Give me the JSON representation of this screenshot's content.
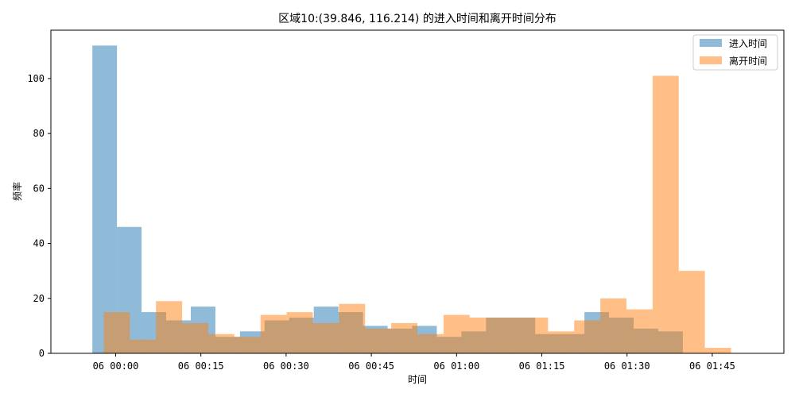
{
  "chart_data": {
    "type": "bar",
    "title": "区域10:(39.846, 116.214) 的进入时间和离开时间分布",
    "xlabel": "时间",
    "ylabel": "频率",
    "x_unit": "minutes after 06 00:00",
    "x_tick_values": [
      0,
      15,
      30,
      45,
      60,
      75,
      90,
      105
    ],
    "x_tick_labels": [
      "06 00:00",
      "06 00:15",
      "06 00:30",
      "06 00:45",
      "06 01:00",
      "06 01:15",
      "06 01:30",
      "06 01:45"
    ],
    "xlim": [
      -11.4,
      117.6
    ],
    "ylim": [
      0,
      117.6
    ],
    "y_tick_values": [
      0,
      20,
      40,
      60,
      80,
      100
    ],
    "grid": false,
    "legend_position": "top-right",
    "series": [
      {
        "name": "进入时间",
        "color": "#1f77b4",
        "opacity": 0.5,
        "bin_edges": [
          -4.1,
          0.23,
          4.56,
          8.89,
          13.22,
          17.55,
          21.88,
          26.21,
          30.54,
          34.87,
          39.2,
          43.53,
          47.86,
          52.19,
          56.52,
          60.85,
          65.18,
          69.51,
          73.84,
          78.17,
          82.5,
          86.83,
          91.16,
          95.49,
          99.82
        ],
        "values": [
          112,
          46,
          15,
          12,
          17,
          6,
          8,
          12,
          13,
          17,
          15,
          10,
          9,
          10,
          6,
          8,
          13,
          13,
          7,
          7,
          15,
          13,
          9,
          8
        ]
      },
      {
        "name": "离开时间",
        "color": "#ff7f0e",
        "opacity": 0.5,
        "bin_edges": [
          -2.1,
          2.5,
          7.1,
          11.7,
          16.3,
          20.9,
          25.5,
          30.1,
          34.7,
          39.3,
          43.9,
          48.5,
          53.1,
          57.7,
          62.3,
          66.9,
          71.5,
          76.1,
          80.7,
          85.3,
          89.9,
          94.5,
          99.1,
          103.7,
          108.3
        ],
        "values": [
          15,
          5,
          19,
          11,
          7,
          6,
          14,
          15,
          11,
          18,
          9,
          11,
          7,
          14,
          13,
          13,
          13,
          8,
          12,
          20,
          16,
          101,
          30,
          2
        ]
      }
    ]
  }
}
